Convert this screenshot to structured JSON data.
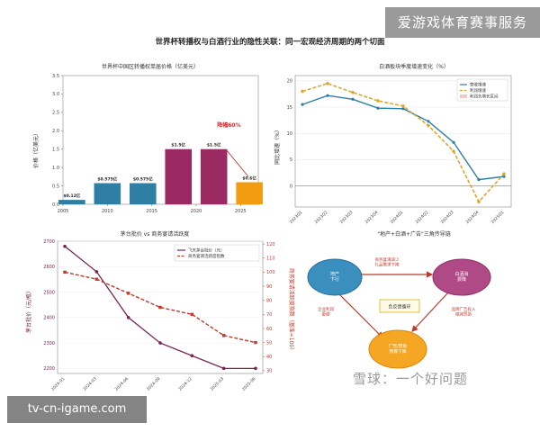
{
  "page": {
    "main_title": "世界杯转播权与白酒行业的隐性关联：同一宏观经济周期的两个切面",
    "watermark_top": "爱游戏体育赛事服务",
    "watermark_bottom": "tv-cn-igame.com",
    "credit": "雪球：一个好问题"
  },
  "colors": {
    "teal": "#2e7fa3",
    "magenta": "#9c2a62",
    "orange": "#f39c12",
    "red": "#c0392b",
    "line_blue": "#2a7fa6",
    "line_orange": "#e3a52a",
    "plum": "#7b2454",
    "bright_red": "#d03030"
  },
  "chart_data": [
    {
      "type": "bar",
      "title": "世界杯中国区转播权单届价格（亿美元）",
      "ylabel": "价格（亿美元）",
      "x": [
        2006,
        2010,
        2014,
        2018,
        2022,
        2026
      ],
      "values": [
        0.12,
        0.575,
        0.575,
        1.5,
        1.5,
        0.6
      ],
      "value_labels": [
        "$0.12亿",
        "$0.575亿",
        "$0.575亿",
        "$1.5亿",
        "$1.5亿",
        "$0.6亿"
      ],
      "bar_colors": [
        "#2e7fa3",
        "#2e7fa3",
        "#2e7fa3",
        "#9c2a62",
        "#9c2a62",
        "#f39c12"
      ],
      "xticks": [
        "2005",
        "2010",
        "2015",
        "2020",
        "2025"
      ],
      "xlim": [
        2005,
        2027
      ],
      "ylim": [
        0,
        3.5
      ],
      "yticks": [
        "0.0",
        "0.5",
        "1.0",
        "1.5",
        "2.0",
        "2.5",
        "3.0",
        "3.5"
      ],
      "annotation": "降幅60%"
    },
    {
      "type": "line",
      "title": "白酒板块季度增速变化（%）",
      "ylabel": "同比增速（%）",
      "categories": [
        "2023Q1",
        "2023Q2",
        "2023Q3",
        "2023Q4",
        "2024Q1",
        "2024Q2",
        "2024Q3",
        "2024Q4",
        "2025Q1"
      ],
      "series": [
        {
          "name": "营收增速",
          "values": [
            15.5,
            17.2,
            16.5,
            14.8,
            14.7,
            12.3,
            8.3,
            1.2,
            1.8
          ]
        },
        {
          "name": "利润增速",
          "values": [
            18.0,
            19.5,
            17.8,
            16.2,
            15.2,
            11.5,
            6.6,
            -3.0,
            2.3
          ]
        }
      ],
      "legend_extra": "利润负增长区间",
      "ylim": [
        -4,
        21
      ],
      "yticks": [
        "-5",
        "0",
        "5",
        "10",
        "15",
        "20"
      ],
      "legend_position": "top-right"
    },
    {
      "type": "line",
      "title": "茅台批价 vs 商务宴请活跃度",
      "ylabel_left": "茅台批价（元/瓶）",
      "ylabel_right": "商务宴请活跃度指数（基准=100）",
      "categories": [
        "2024-01",
        "2024-03",
        "2024-06",
        "2024-09",
        "2024-12",
        "2025-03",
        "2025-06"
      ],
      "series": [
        {
          "name": "飞天茅台批价（元）",
          "axis": "left",
          "values": [
            2680,
            2580,
            2400,
            2300,
            2250,
            2200,
            2200
          ]
        },
        {
          "name": "商务宴请活跃度指数",
          "axis": "right",
          "values": [
            100,
            95,
            85,
            75,
            70,
            55,
            50
          ]
        }
      ],
      "ylim_left": [
        2180,
        2700
      ],
      "yticks_left": [
        "2200",
        "2300",
        "2400",
        "2500",
        "2600",
        "2700"
      ],
      "ylim_right": [
        28,
        122
      ],
      "yticks_right": [
        "30",
        "40",
        "50",
        "60",
        "70",
        "80",
        "90",
        "100",
        "110",
        "120"
      ],
      "legend_position": "top-right"
    }
  ],
  "diagram": {
    "title": "\"地产+白酒+广告\"三角传导链",
    "nodes": {
      "estate": "地产\n下行",
      "liquor": "白酒消\n费降",
      "ads": "广告/赞助\n预算下降",
      "center": "负反馈循环"
    },
    "edges": {
      "estate_liquor": "商务宴请减少\n礼品需求下降",
      "estate_ads": "企业利润\n萎缩",
      "liquor_ads": "品牌广告投入\n缩减赞助"
    }
  }
}
